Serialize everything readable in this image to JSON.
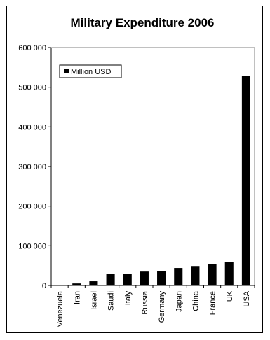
{
  "chart_data": {
    "type": "bar",
    "title": "Military Expenditure 2006",
    "categories": [
      "Venezuela",
      "Iran",
      "Israel",
      "Saudi",
      "Italy",
      "Russia",
      "Germany",
      "Japan",
      "China",
      "France",
      "UK",
      "USA"
    ],
    "series": [
      {
        "name": "Million USD",
        "values": [
          1500,
          5000,
          10500,
          29000,
          30000,
          35000,
          37000,
          44000,
          49000,
          53000,
          59000,
          529000
        ],
        "color": "#000000"
      }
    ],
    "ylim": [
      0,
      600000
    ],
    "yticks": [
      "0",
      "100 000",
      "200 000",
      "300 000",
      "400 000",
      "500 000",
      "600 000"
    ],
    "grid": false,
    "legend_position": "top-left"
  }
}
